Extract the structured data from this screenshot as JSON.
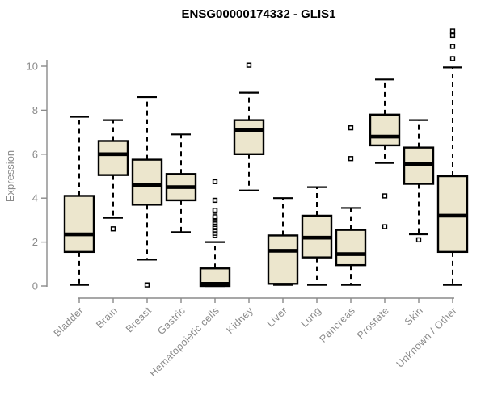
{
  "page": {
    "background": "#FFFFFF"
  },
  "chart_data": {
    "type": "boxplot",
    "title": "ENSG00000174332 - GLIS1",
    "xlabel": "",
    "ylabel": "Expression",
    "ylim": [
      0,
      10
    ],
    "yticks": [
      0,
      2,
      4,
      6,
      8,
      10
    ],
    "grid": false,
    "legend": "none",
    "categories": [
      "Bladder",
      "Brain",
      "Breast",
      "Gastric",
      "Hematopoietic cells",
      "Kidney",
      "Liver",
      "Lung",
      "Pancreas",
      "Prostate",
      "Skin",
      "Unknown / Other"
    ],
    "series": [
      {
        "category": "Bladder",
        "low": 0.05,
        "q1": 1.55,
        "median": 2.35,
        "q3": 4.1,
        "high": 7.7,
        "outliers": []
      },
      {
        "category": "Brain",
        "low": 3.1,
        "q1": 5.05,
        "median": 6.0,
        "q3": 6.6,
        "high": 7.55,
        "outliers": [
          2.6
        ]
      },
      {
        "category": "Breast",
        "low": 1.2,
        "q1": 3.7,
        "median": 4.6,
        "q3": 5.75,
        "high": 8.6,
        "outliers": [
          0.05
        ]
      },
      {
        "category": "Gastric",
        "low": 2.45,
        "q1": 3.9,
        "median": 4.5,
        "q3": 5.1,
        "high": 6.9,
        "outliers": []
      },
      {
        "category": "Hematopoietic cells",
        "low": 0.0,
        "q1": 0.0,
        "median": 0.1,
        "q3": 0.8,
        "high": 2.0,
        "outliers": [
          2.3,
          2.4,
          2.5,
          2.55,
          2.65,
          2.7,
          2.8,
          2.9,
          3.0,
          3.1,
          3.15,
          3.4,
          3.45,
          3.9,
          4.75
        ]
      },
      {
        "category": "Kidney",
        "low": 4.35,
        "q1": 6.0,
        "median": 7.1,
        "q3": 7.55,
        "high": 8.8,
        "outliers": [
          10.05
        ]
      },
      {
        "category": "Liver",
        "low": 0.05,
        "q1": 0.1,
        "median": 1.6,
        "q3": 2.3,
        "high": 4.0,
        "outliers": []
      },
      {
        "category": "Lung",
        "low": 0.05,
        "q1": 1.3,
        "median": 2.2,
        "q3": 3.2,
        "high": 4.5,
        "outliers": []
      },
      {
        "category": "Pancreas",
        "low": 0.05,
        "q1": 0.95,
        "median": 1.45,
        "q3": 2.55,
        "high": 3.55,
        "outliers": [
          5.8,
          7.2
        ]
      },
      {
        "category": "Prostate",
        "low": 5.6,
        "q1": 6.4,
        "median": 6.8,
        "q3": 7.8,
        "high": 9.4,
        "outliers": [
          4.1,
          2.7
        ]
      },
      {
        "category": "Skin",
        "low": 2.35,
        "q1": 4.65,
        "median": 5.55,
        "q3": 6.3,
        "high": 7.55,
        "outliers": [
          2.1
        ]
      },
      {
        "category": "Unknown / Other",
        "low": 0.05,
        "q1": 1.55,
        "median": 3.2,
        "q3": 5.0,
        "high": 9.95,
        "outliers": [
          10.35,
          10.9,
          11.4,
          11.6
        ]
      }
    ],
    "style": {
      "box_fill": "#ECE6CD",
      "box_stroke": "#000000",
      "median_color": "#000000",
      "whisker_color": "#000000",
      "outlier_color": "#000000",
      "axis_color": "#8A8A8A",
      "label_color": "#8A8A8A",
      "title_color": "#000000",
      "background": "#FFFFFF"
    }
  }
}
